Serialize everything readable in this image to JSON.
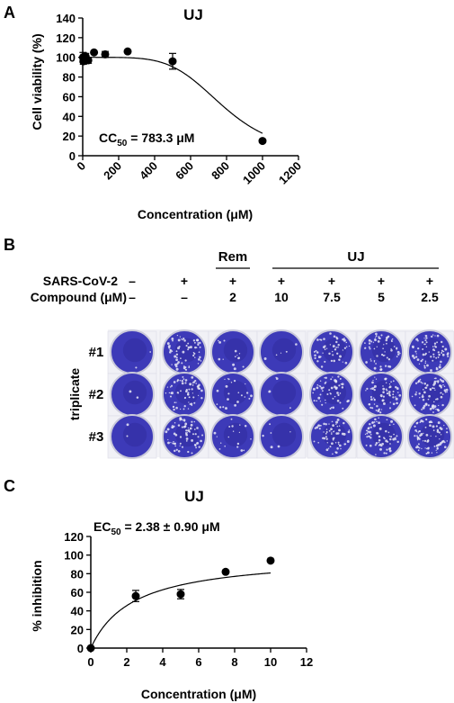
{
  "panel_a": {
    "letter": "A",
    "chart_data": {
      "type": "scatter",
      "title": "UJ",
      "xlabel": "Concentration (μM)",
      "ylabel": "Cell viability (%)",
      "xlim": [
        0,
        1200
      ],
      "ylim": [
        0,
        140
      ],
      "xticks": [
        0,
        200,
        400,
        600,
        800,
        1000,
        1200
      ],
      "yticks": [
        0,
        20,
        40,
        60,
        80,
        100,
        120,
        140
      ],
      "points": [
        {
          "x": 2,
          "y": 100,
          "err": 5
        },
        {
          "x": 4,
          "y": 96,
          "err": 3
        },
        {
          "x": 8,
          "y": 99,
          "err": 4
        },
        {
          "x": 16,
          "y": 101,
          "err": 3
        },
        {
          "x": 31,
          "y": 97,
          "err": 3
        },
        {
          "x": 63,
          "y": 105,
          "err": 0
        },
        {
          "x": 125,
          "y": 103,
          "err": 3
        },
        {
          "x": 250,
          "y": 106,
          "err": 0
        },
        {
          "x": 500,
          "y": 96,
          "err": 8
        },
        {
          "x": 1000,
          "y": 15,
          "err": 0
        }
      ],
      "fit": {
        "model": "sigmoid",
        "top": 100,
        "bottom": 0,
        "cc50": 783.3,
        "hill": 5
      },
      "annotation": {
        "prefix": "CC",
        "sub": "50",
        "suffix": " = 783.3 μM"
      }
    }
  },
  "panel_b": {
    "letter": "B",
    "group_labels": {
      "rem": "Rem",
      "uj": "UJ"
    },
    "row_labels": {
      "virus": "SARS-CoV-2",
      "compound": "Compound (μM)"
    },
    "virus_signs": [
      "–",
      "+",
      "+",
      "+",
      "+",
      "+",
      "+"
    ],
    "compound_values": [
      "–",
      "–",
      "2",
      "10",
      "7.5",
      "5",
      "2.5"
    ],
    "replicate_axis_label": "triplicate",
    "replicates": [
      "#1",
      "#2",
      "#3"
    ],
    "plate_colors": {
      "background": "#f1f1f6",
      "stain": "#3d3ab8",
      "stain_dark": "#2a2690",
      "plaque": "#e8e8f5"
    },
    "plaque_density": [
      [
        0.02,
        0.55,
        0.12,
        0.04,
        0.4,
        0.5,
        0.6
      ],
      [
        0.02,
        0.55,
        0.18,
        0.04,
        0.45,
        0.55,
        0.65
      ],
      [
        0.02,
        0.55,
        0.15,
        0.05,
        0.5,
        0.55,
        0.65
      ]
    ]
  },
  "panel_c": {
    "letter": "C",
    "chart_data": {
      "type": "scatter",
      "title": "UJ",
      "xlabel": "Concentration (μM)",
      "ylabel": "% inhibition",
      "xlim": [
        0,
        12
      ],
      "ylim": [
        0,
        120
      ],
      "xticks": [
        0,
        2,
        4,
        6,
        8,
        10,
        12
      ],
      "yticks": [
        0,
        20,
        40,
        60,
        80,
        100,
        120
      ],
      "points": [
        {
          "x": 0,
          "y": 0,
          "err": 0
        },
        {
          "x": 2.5,
          "y": 56,
          "err": 6
        },
        {
          "x": 5,
          "y": 58,
          "err": 5
        },
        {
          "x": 7.5,
          "y": 82,
          "err": 0
        },
        {
          "x": 10,
          "y": 94,
          "err": 0
        }
      ],
      "fit": {
        "model": "hyperbola",
        "top": 100,
        "ec50": 2.38
      },
      "annotation": {
        "prefix": "EC",
        "sub": "50",
        "suffix": " = 2.38 ± 0.90 μM"
      }
    }
  }
}
